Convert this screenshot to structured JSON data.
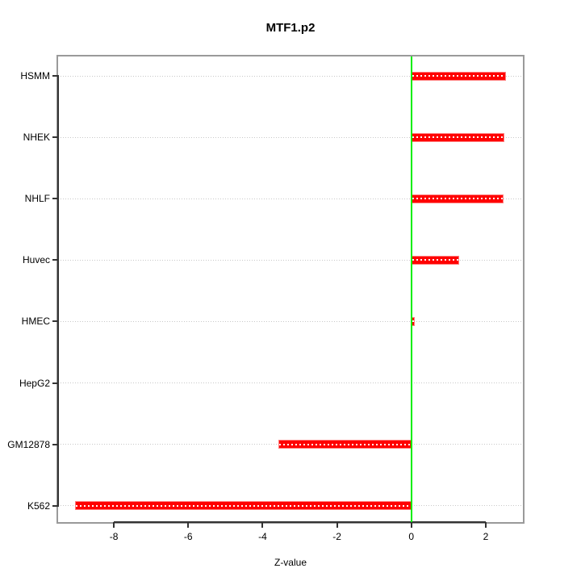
{
  "figure": {
    "title": "MTF1.p2",
    "xlabel": "Z-value"
  },
  "chart_data": {
    "type": "bar",
    "orientation": "horizontal",
    "title": "MTF1.p2",
    "xlabel": "Z-value",
    "ylabel": "",
    "categories": [
      "HSMM",
      "NHEK",
      "NHLF",
      "Huvec",
      "HMEC",
      "HepG2",
      "GM12878",
      "K562"
    ],
    "values": [
      2.54,
      2.51,
      2.48,
      1.28,
      0.1,
      0,
      -3.57,
      -9.04
    ],
    "xlim": [
      -9.5,
      3.0
    ],
    "x_ticks": [
      -8,
      -6,
      -4,
      -2,
      0,
      2
    ],
    "zero_reference_line": 0,
    "grid": "dotted horizontal line at each category row",
    "legend": "none",
    "colors": {
      "bar": "#FF0000",
      "bar_edge": "#FF7B7B",
      "bar_centerline": "#FFFFFF",
      "zero_line": "#00EE00",
      "box_border": "#9A9A9A",
      "axis": "#333333",
      "grid": "#C8C8C8",
      "text": "#000000",
      "background": "#FFFFFF"
    }
  }
}
